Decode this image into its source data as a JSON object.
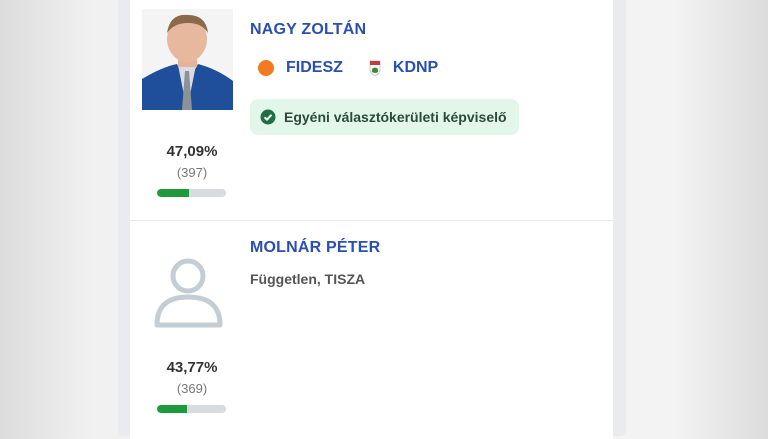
{
  "candidates": [
    {
      "name": "NAGY ZOLTÁN",
      "photo": "candidate-photo",
      "parties": [
        {
          "label": "FIDESZ",
          "icon": "fidesz-logo-icon",
          "color": "#f47a20"
        },
        {
          "label": "KDNP",
          "icon": "kdnp-shield-icon"
        }
      ],
      "badge": "Egyéni választókerületi képviselő",
      "percent": "47,09%",
      "votes": "(397)",
      "share": 47.09
    },
    {
      "name": "MOLNÁR PÉTER",
      "affiliation": "Független, TISZA",
      "photo": "user-placeholder-icon",
      "percent": "43,77%",
      "votes": "(369)",
      "share": 43.77
    }
  ],
  "colors": {
    "name": "#2a4fb0",
    "bar_fill": "#1e9a3c",
    "bar_track": "#d9dcdf",
    "badge_bg": "#e2f7ea"
  }
}
